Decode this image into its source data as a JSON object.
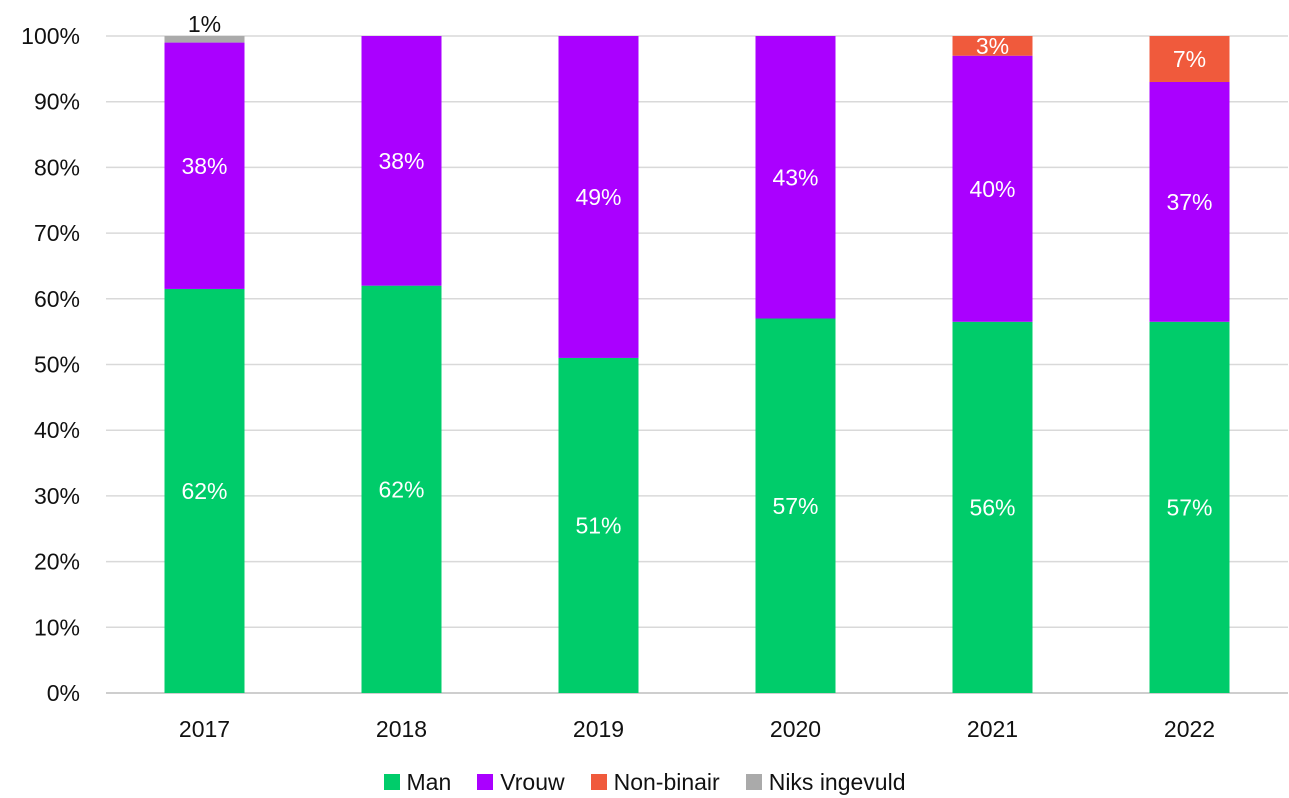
{
  "chart_data": {
    "type": "bar",
    "stacked": true,
    "percent": true,
    "categories": [
      "2017",
      "2018",
      "2019",
      "2020",
      "2021",
      "2022"
    ],
    "ylim": [
      0,
      100
    ],
    "yticks": [
      "0%",
      "10%",
      "20%",
      "30%",
      "40%",
      "50%",
      "60%",
      "70%",
      "80%",
      "90%",
      "100%"
    ],
    "grid": true,
    "legend_position": "bottom",
    "series": [
      {
        "name": "Man",
        "color": "#00cc6a",
        "values": [
          61.5,
          62,
          51,
          57,
          56.5,
          56.5
        ],
        "labels": [
          "62%",
          "62%",
          "51%",
          "57%",
          "56%",
          "57%"
        ],
        "label_color": "#ffffff"
      },
      {
        "name": "Vrouw",
        "color": "#aa00ff",
        "values": [
          37.5,
          38,
          49,
          43,
          40.5,
          36.5
        ],
        "labels": [
          "38%",
          "38%",
          "49%",
          "43%",
          "40%",
          "37%"
        ],
        "label_color": "#ffffff"
      },
      {
        "name": "Non-binair",
        "color": "#f05a3c",
        "values": [
          0,
          0,
          0,
          0,
          3,
          7
        ],
        "labels": [
          "",
          "",
          "",
          "",
          "3%",
          "7%"
        ],
        "label_color": "#ffffff"
      },
      {
        "name": "Niks ingevuld",
        "color": "#aaaaaa",
        "values": [
          1,
          0,
          0,
          0,
          0,
          0
        ],
        "labels": [
          "1%",
          "",
          "",
          "",
          "",
          ""
        ],
        "label_color": "#111111"
      }
    ]
  }
}
